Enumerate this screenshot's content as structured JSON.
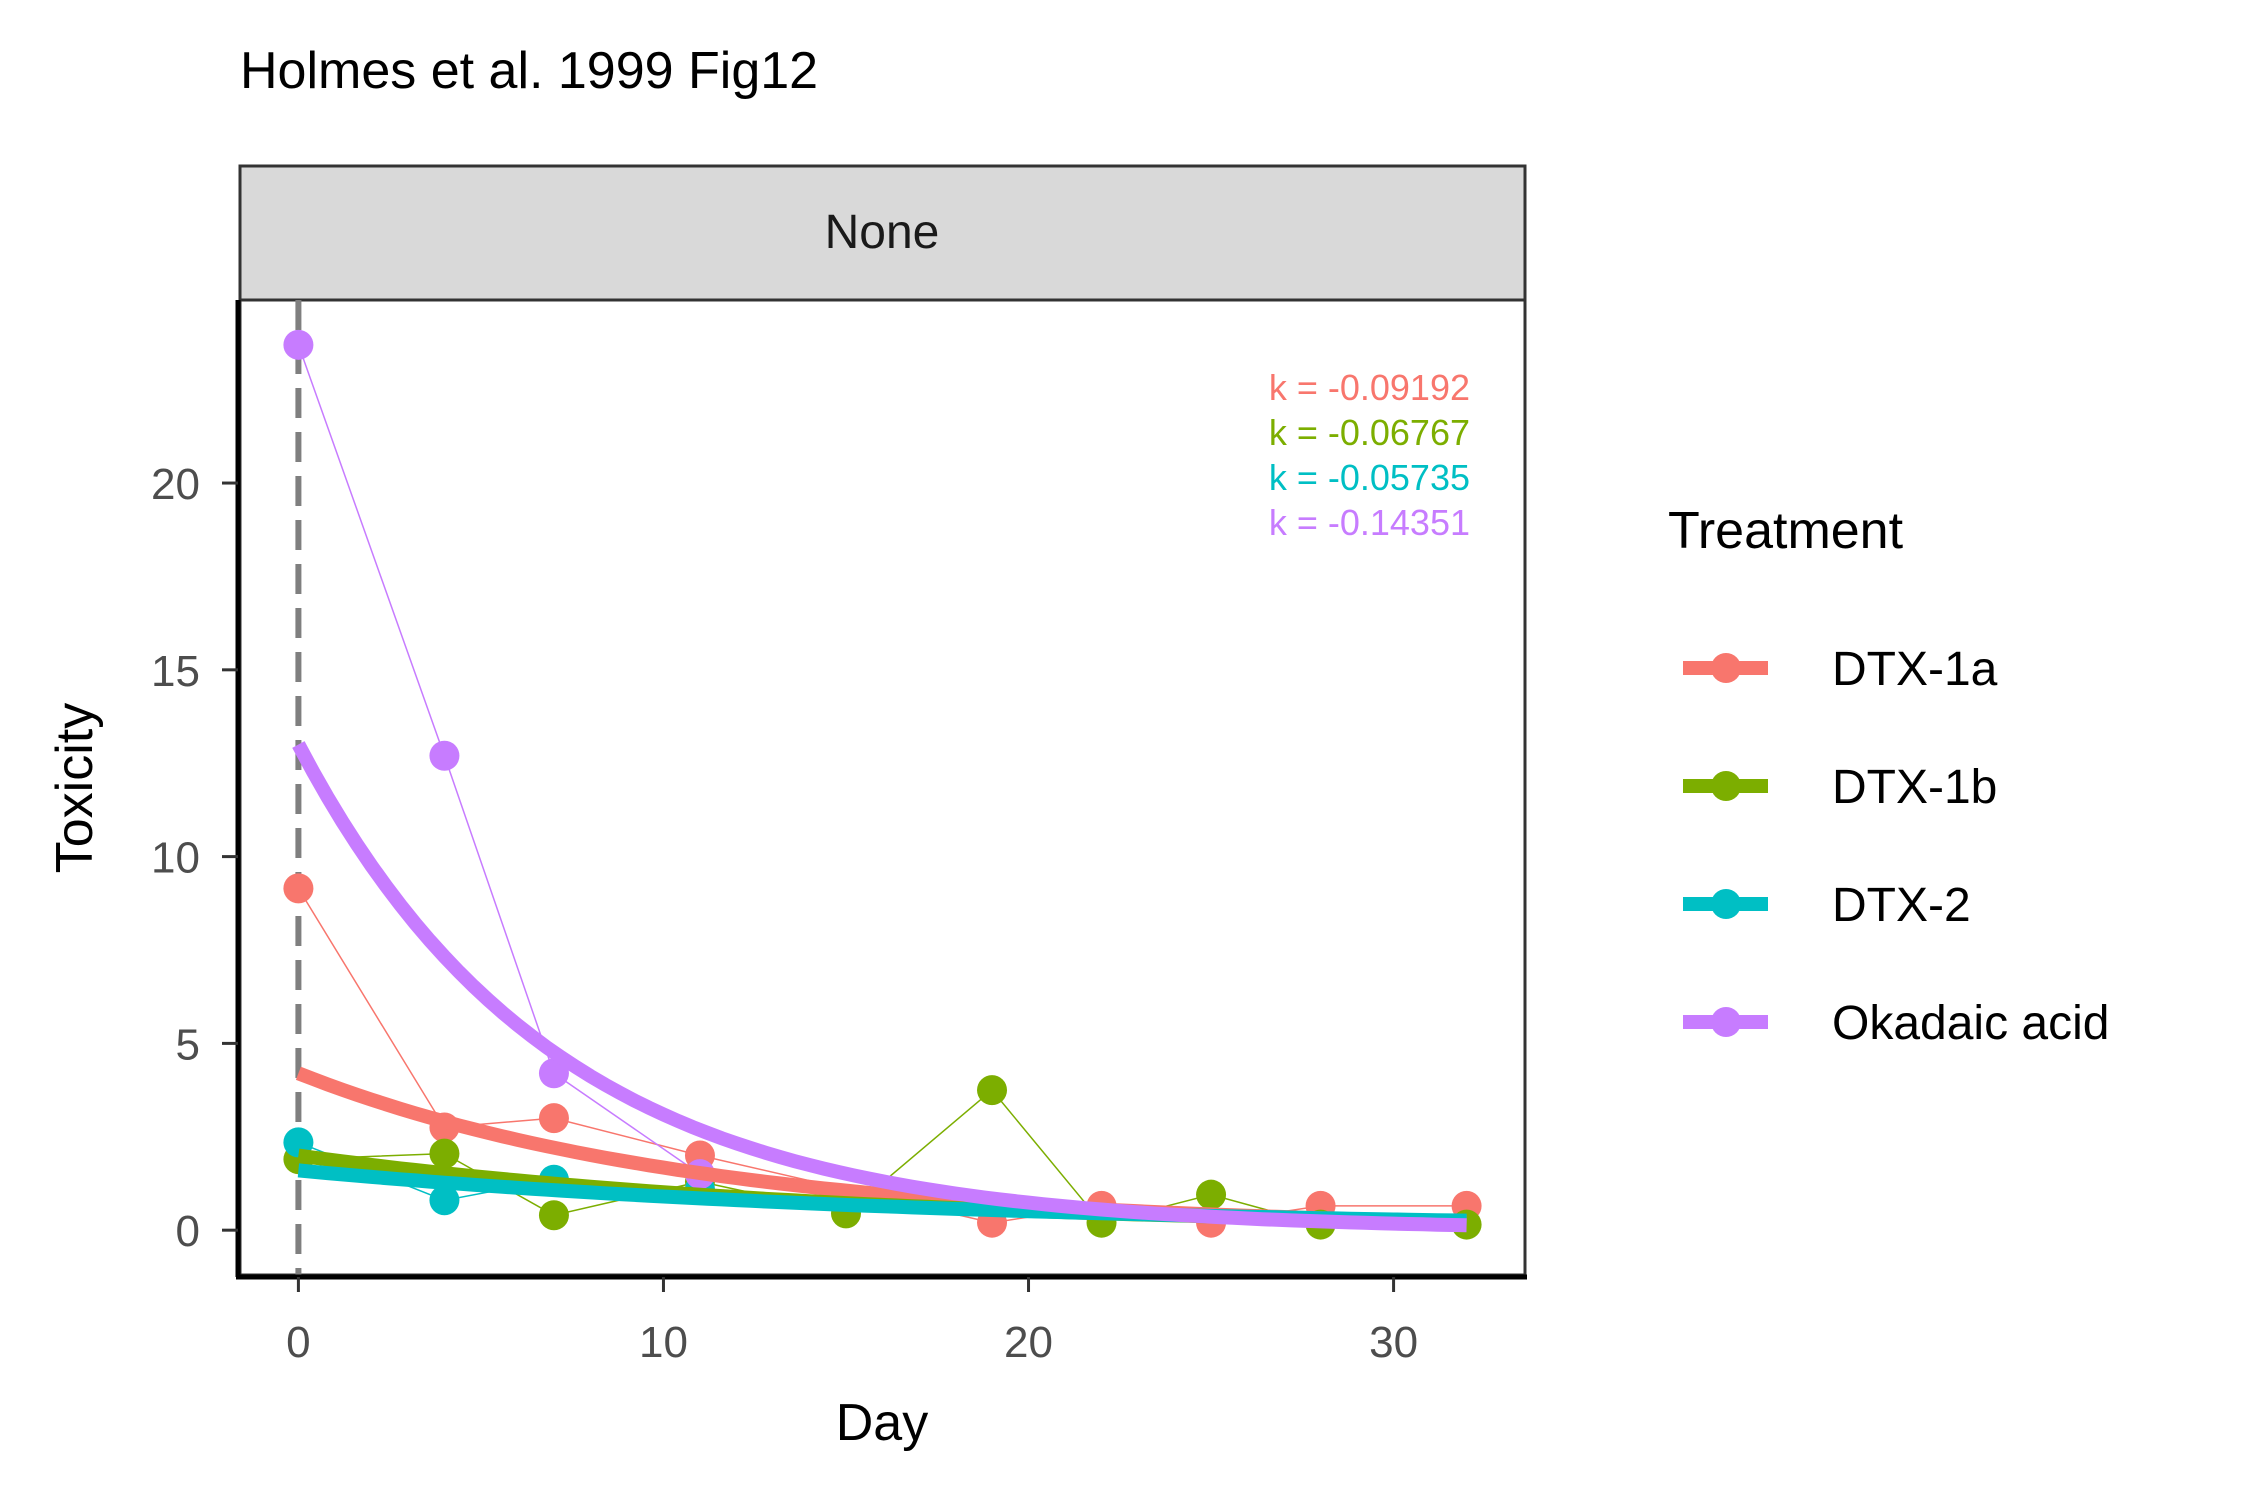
{
  "chart_data": {
    "type": "line",
    "title": "Holmes et al. 1999 Fig12",
    "facet_label": "None",
    "xlabel": "Day",
    "ylabel": "Toxicity",
    "xlim": [
      -1.6,
      33.6
    ],
    "ylim": [
      -1.2,
      24.9
    ],
    "x_ticks": [
      0,
      10,
      20,
      30
    ],
    "y_ticks": [
      0,
      5,
      10,
      15,
      20
    ],
    "grid": false,
    "vline_x": 0,
    "legend": {
      "title": "Treatment",
      "position": "right",
      "entries": [
        "DTX-1a",
        "DTX-1b",
        "DTX-2",
        "Okadaic acid"
      ]
    },
    "series": [
      {
        "name": "DTX-1a",
        "color": "#F8766D",
        "x": [
          0,
          4,
          7,
          11,
          19,
          22,
          25,
          28,
          32
        ],
        "y": [
          9.15,
          2.75,
          3.0,
          2.0,
          0.2,
          0.65,
          0.2,
          0.65,
          0.65
        ],
        "fit": {
          "a": 4.2,
          "k": -0.09192,
          "x0": 0,
          "x1": 32
        },
        "annotation": "k = -0.09192"
      },
      {
        "name": "DTX-1b",
        "color": "#7CAE00",
        "x": [
          0,
          4,
          7,
          11,
          15,
          19,
          22,
          25,
          28,
          32
        ],
        "y": [
          1.9,
          2.05,
          0.4,
          1.3,
          0.45,
          3.75,
          0.2,
          0.95,
          0.15,
          0.15
        ],
        "fit": {
          "a": 2.0,
          "k": -0.06767,
          "x0": 0,
          "x1": 32
        },
        "annotation": "k = -0.06767"
      },
      {
        "name": "DTX-2",
        "color": "#00BFC4",
        "x": [
          0,
          4,
          7,
          11
        ],
        "y": [
          2.35,
          0.8,
          1.35,
          1.1
        ],
        "fit": {
          "a": 1.6,
          "k": -0.05735,
          "x0": 0,
          "x1": 32
        },
        "annotation": "k = -0.05735"
      },
      {
        "name": "Okadaic acid",
        "color": "#C77CFF",
        "x": [
          0,
          4,
          7,
          11
        ],
        "y": [
          23.7,
          12.7,
          4.2,
          1.5
        ],
        "fit": {
          "a": 13.0,
          "k": -0.14351,
          "x0": 0,
          "x1": 32
        },
        "annotation": "k = -0.14351"
      }
    ]
  }
}
